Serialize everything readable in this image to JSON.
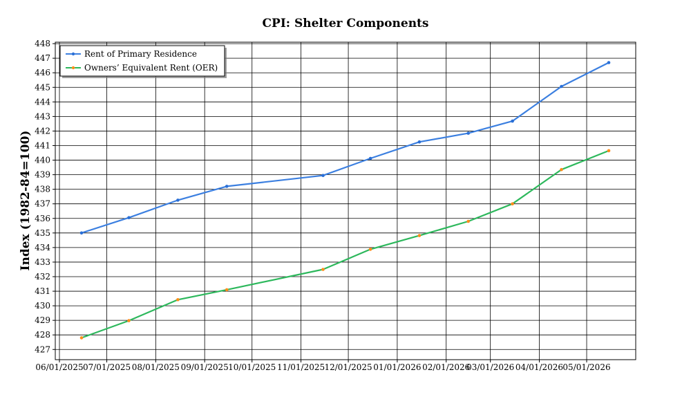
{
  "chart_data": {
    "type": "line",
    "title": "CPI: Shelter Components",
    "xlabel": "",
    "ylabel": "Index (1982-84=100)",
    "x_ticks": [
      "06/01/2025",
      "07/01/2025",
      "08/01/2025",
      "09/01/2025",
      "10/01/2025",
      "11/01/2025",
      "12/01/2025",
      "01/01/2026",
      "02/01/2026",
      "03/01/2026",
      "04/01/2026",
      "05/01/2026"
    ],
    "ylim": [
      426.3,
      448.1
    ],
    "y_ticks": [
      427,
      428,
      429,
      430,
      431,
      432,
      433,
      434,
      435,
      436,
      437,
      438,
      439,
      440,
      441,
      442,
      443,
      444,
      445,
      446,
      447,
      448
    ],
    "grid": true,
    "legend_position": "top-left",
    "series": [
      {
        "name": "Rent of Primary Residence",
        "color": "#3b7fe0",
        "marker_color": "#2a6fd6",
        "points": [
          [
            "2025-06-15",
            435.0
          ],
          [
            "2025-07-15",
            436.05
          ],
          [
            "2025-08-15",
            437.25
          ],
          [
            "2025-09-15",
            438.2
          ],
          [
            "2025-11-15",
            438.95
          ],
          [
            "2025-12-15",
            440.12
          ],
          [
            "2026-01-15",
            441.25
          ],
          [
            "2026-02-15",
            441.85
          ],
          [
            "2026-03-15",
            442.68
          ],
          [
            "2026-04-15",
            445.06
          ],
          [
            "2026-05-15",
            446.7
          ]
        ]
      },
      {
        "name": "Owners’ Equivalent Rent (OER)",
        "color": "#2db85c",
        "marker_color": "#ff8c1a",
        "points": [
          [
            "2025-06-15",
            427.8
          ],
          [
            "2025-07-15",
            428.98
          ],
          [
            "2025-08-15",
            430.42
          ],
          [
            "2025-09-15",
            431.1
          ],
          [
            "2025-11-15",
            432.5
          ],
          [
            "2025-12-15",
            433.88
          ],
          [
            "2026-01-15",
            434.82
          ],
          [
            "2026-02-15",
            435.8
          ],
          [
            "2026-03-15",
            437.0
          ],
          [
            "2026-04-15",
            439.35
          ],
          [
            "2026-05-15",
            440.65
          ]
        ]
      }
    ]
  }
}
